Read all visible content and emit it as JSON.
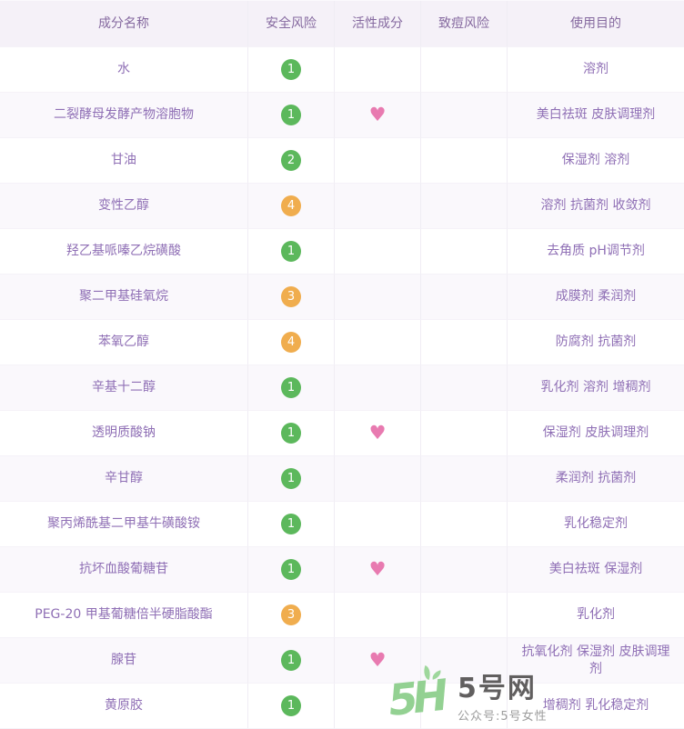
{
  "table": {
    "columns": [
      "成分名称",
      "安全风险",
      "活性成分",
      "致痘风险",
      "使用目的"
    ],
    "rows": [
      {
        "name": "水",
        "safety": "1",
        "active": false,
        "acne": "",
        "purpose": "溶剂"
      },
      {
        "name": "二裂酵母发酵产物溶胞物",
        "safety": "1",
        "active": true,
        "acne": "",
        "purpose": "美白祛斑 皮肤调理剂"
      },
      {
        "name": "甘油",
        "safety": "2",
        "active": false,
        "acne": "",
        "purpose": "保湿剂 溶剂"
      },
      {
        "name": "变性乙醇",
        "safety": "4",
        "active": false,
        "acne": "",
        "purpose": "溶剂 抗菌剂 收敛剂"
      },
      {
        "name": "羟乙基哌嗪乙烷磺酸",
        "safety": "1",
        "active": false,
        "acne": "",
        "purpose": "去角质 pH调节剂"
      },
      {
        "name": "聚二甲基硅氧烷",
        "safety": "3",
        "active": false,
        "acne": "",
        "purpose": "成膜剂 柔润剂"
      },
      {
        "name": "苯氧乙醇",
        "safety": "4",
        "active": false,
        "acne": "",
        "purpose": "防腐剂 抗菌剂"
      },
      {
        "name": "辛基十二醇",
        "safety": "1",
        "active": false,
        "acne": "",
        "purpose": "乳化剂 溶剂 增稠剂"
      },
      {
        "name": "透明质酸钠",
        "safety": "1",
        "active": true,
        "acne": "",
        "purpose": "保湿剂 皮肤调理剂"
      },
      {
        "name": "辛甘醇",
        "safety": "1",
        "active": false,
        "acne": "",
        "purpose": "柔润剂 抗菌剂"
      },
      {
        "name": "聚丙烯酰基二甲基牛磺酸铵",
        "safety": "1",
        "active": false,
        "acne": "",
        "purpose": "乳化稳定剂"
      },
      {
        "name": "抗坏血酸葡糖苷",
        "safety": "1",
        "active": true,
        "acne": "",
        "purpose": "美白祛斑 保湿剂"
      },
      {
        "name": "PEG-20 甲基葡糖倍半硬脂酸酯",
        "safety": "3",
        "active": false,
        "acne": "",
        "purpose": "乳化剂"
      },
      {
        "name": "腺苷",
        "safety": "1",
        "active": true,
        "acne": "",
        "purpose": "抗氧化剂 保湿剂 皮肤调理剂"
      },
      {
        "name": "黄原胶",
        "safety": "1",
        "active": false,
        "acne": "",
        "purpose": "增稠剂 乳化稳定剂"
      }
    ]
  },
  "icons": {
    "heart": "♥"
  },
  "colors": {
    "safe_green": "#5cb85c",
    "risk_orange": "#f0ad4e",
    "heart_pink": "#e87ab0",
    "text_purple": "#8f6fb5",
    "header_bg": "#f5f1f8",
    "stripe_bg": "#faf8fc"
  },
  "watermark": {
    "logo": "5H",
    "site": "5号网",
    "tagline": "公众号:5号女性"
  }
}
